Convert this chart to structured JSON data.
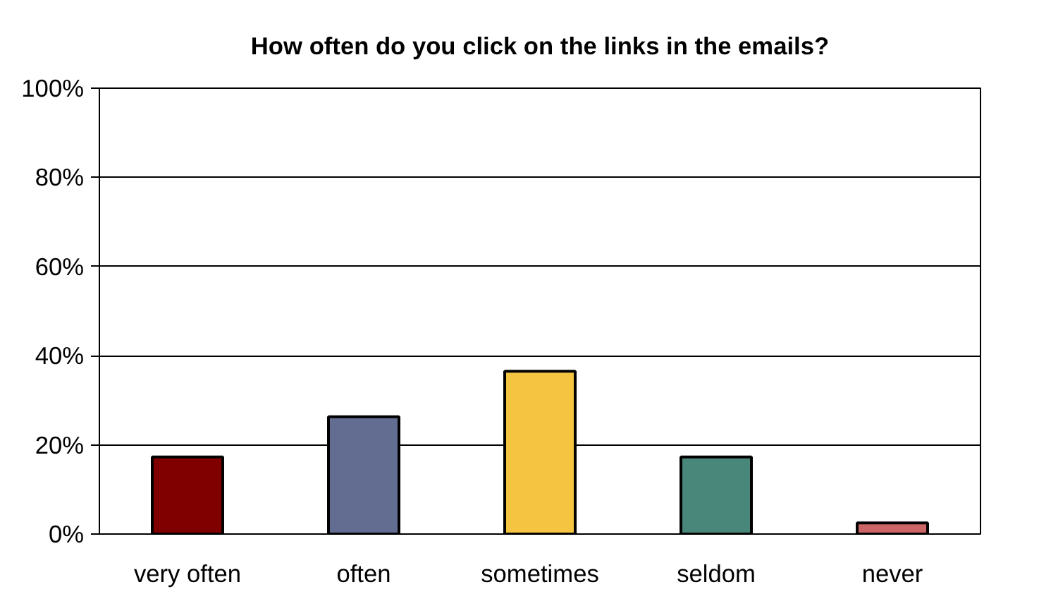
{
  "chart_data": {
    "type": "bar",
    "title": "How often do you click on the links in the emails?",
    "categories": [
      "very often",
      "often",
      "sometimes",
      "seldom",
      "never"
    ],
    "values": [
      17.3,
      26.3,
      36.5,
      17.3,
      2.5
    ],
    "colors": [
      "#800000",
      "#636d92",
      "#f5c542",
      "#48877a",
      "#cc6666"
    ],
    "ylim": [
      0,
      100
    ],
    "yticks": [
      {
        "value": 0,
        "label": "0%"
      },
      {
        "value": 20,
        "label": "20%"
      },
      {
        "value": 40,
        "label": "40%"
      },
      {
        "value": 60,
        "label": "60%"
      },
      {
        "value": 80,
        "label": "80%"
      },
      {
        "value": 100,
        "label": "100%"
      }
    ],
    "grid": "y"
  }
}
